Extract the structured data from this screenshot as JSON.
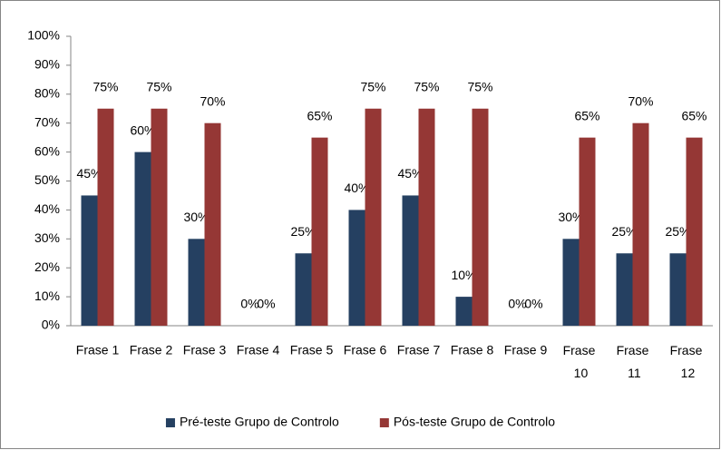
{
  "chart_data": {
    "type": "bar",
    "categories": [
      "Frase 1",
      "Frase 2",
      "Frase 3",
      "Frase 4",
      "Frase 5",
      "Frase 6",
      "Frase 7",
      "Frase 8",
      "Frase 9",
      "Frase 10",
      "Frase 11",
      "Frase 12"
    ],
    "series": [
      {
        "name": "Pré-teste Grupo de Controlo",
        "color": "#254061",
        "values": [
          45,
          60,
          30,
          0,
          25,
          40,
          45,
          10,
          0,
          30,
          25,
          25
        ],
        "value_labels": [
          "45%",
          "60%",
          "30%",
          "0%",
          "25%",
          "40%",
          "45%",
          "10%",
          "0%",
          "30%",
          "25%",
          "25%"
        ]
      },
      {
        "name": "Pós-teste Grupo de Controlo",
        "color": "#953735",
        "values": [
          75,
          75,
          70,
          0,
          65,
          75,
          75,
          75,
          0,
          65,
          70,
          65
        ],
        "value_labels": [
          "75%",
          "75%",
          "70%",
          "0%",
          "65%",
          "75%",
          "75%",
          "75%",
          "0%",
          "65%",
          "70%",
          "65%"
        ]
      }
    ],
    "ylim": [
      0,
      100
    ],
    "yticks": [
      {
        "value": 0,
        "label": "0%"
      },
      {
        "value": 10,
        "label": "10%"
      },
      {
        "value": 20,
        "label": "20%"
      },
      {
        "value": 30,
        "label": "30%"
      },
      {
        "value": 40,
        "label": "40%"
      },
      {
        "value": 50,
        "label": "50%"
      },
      {
        "value": 60,
        "label": "60%"
      },
      {
        "value": 70,
        "label": "70%"
      },
      {
        "value": 80,
        "label": "80%"
      },
      {
        "value": 90,
        "label": "90%"
      },
      {
        "value": 100,
        "label": "100%"
      }
    ],
    "legend": "bottom"
  }
}
